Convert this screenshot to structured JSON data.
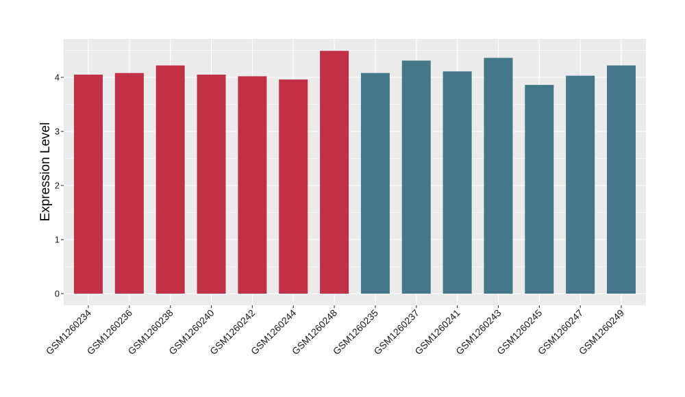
{
  "chart_data": {
    "type": "bar",
    "title": "",
    "xlabel": "",
    "ylabel": "Expression Level",
    "ylim": [
      0,
      4.5
    ],
    "yticks": [
      0,
      1,
      2,
      3,
      4
    ],
    "grid": true,
    "legend": "none",
    "categories": [
      "GSM1260234",
      "GSM1260236",
      "GSM1260238",
      "GSM1260240",
      "GSM1260242",
      "GSM1260244",
      "GSM1260248",
      "GSM1260235",
      "GSM1260237",
      "GSM1260241",
      "GSM1260243",
      "GSM1260245",
      "GSM1260247",
      "GSM1260249"
    ],
    "values": [
      4.05,
      4.08,
      4.22,
      4.05,
      4.02,
      3.96,
      4.49,
      4.08,
      4.31,
      4.11,
      4.36,
      3.86,
      4.03,
      4.22
    ],
    "group": [
      0,
      0,
      0,
      0,
      0,
      0,
      0,
      1,
      1,
      1,
      1,
      1,
      1,
      1
    ],
    "colors": [
      "#c23048",
      "#437789"
    ]
  }
}
